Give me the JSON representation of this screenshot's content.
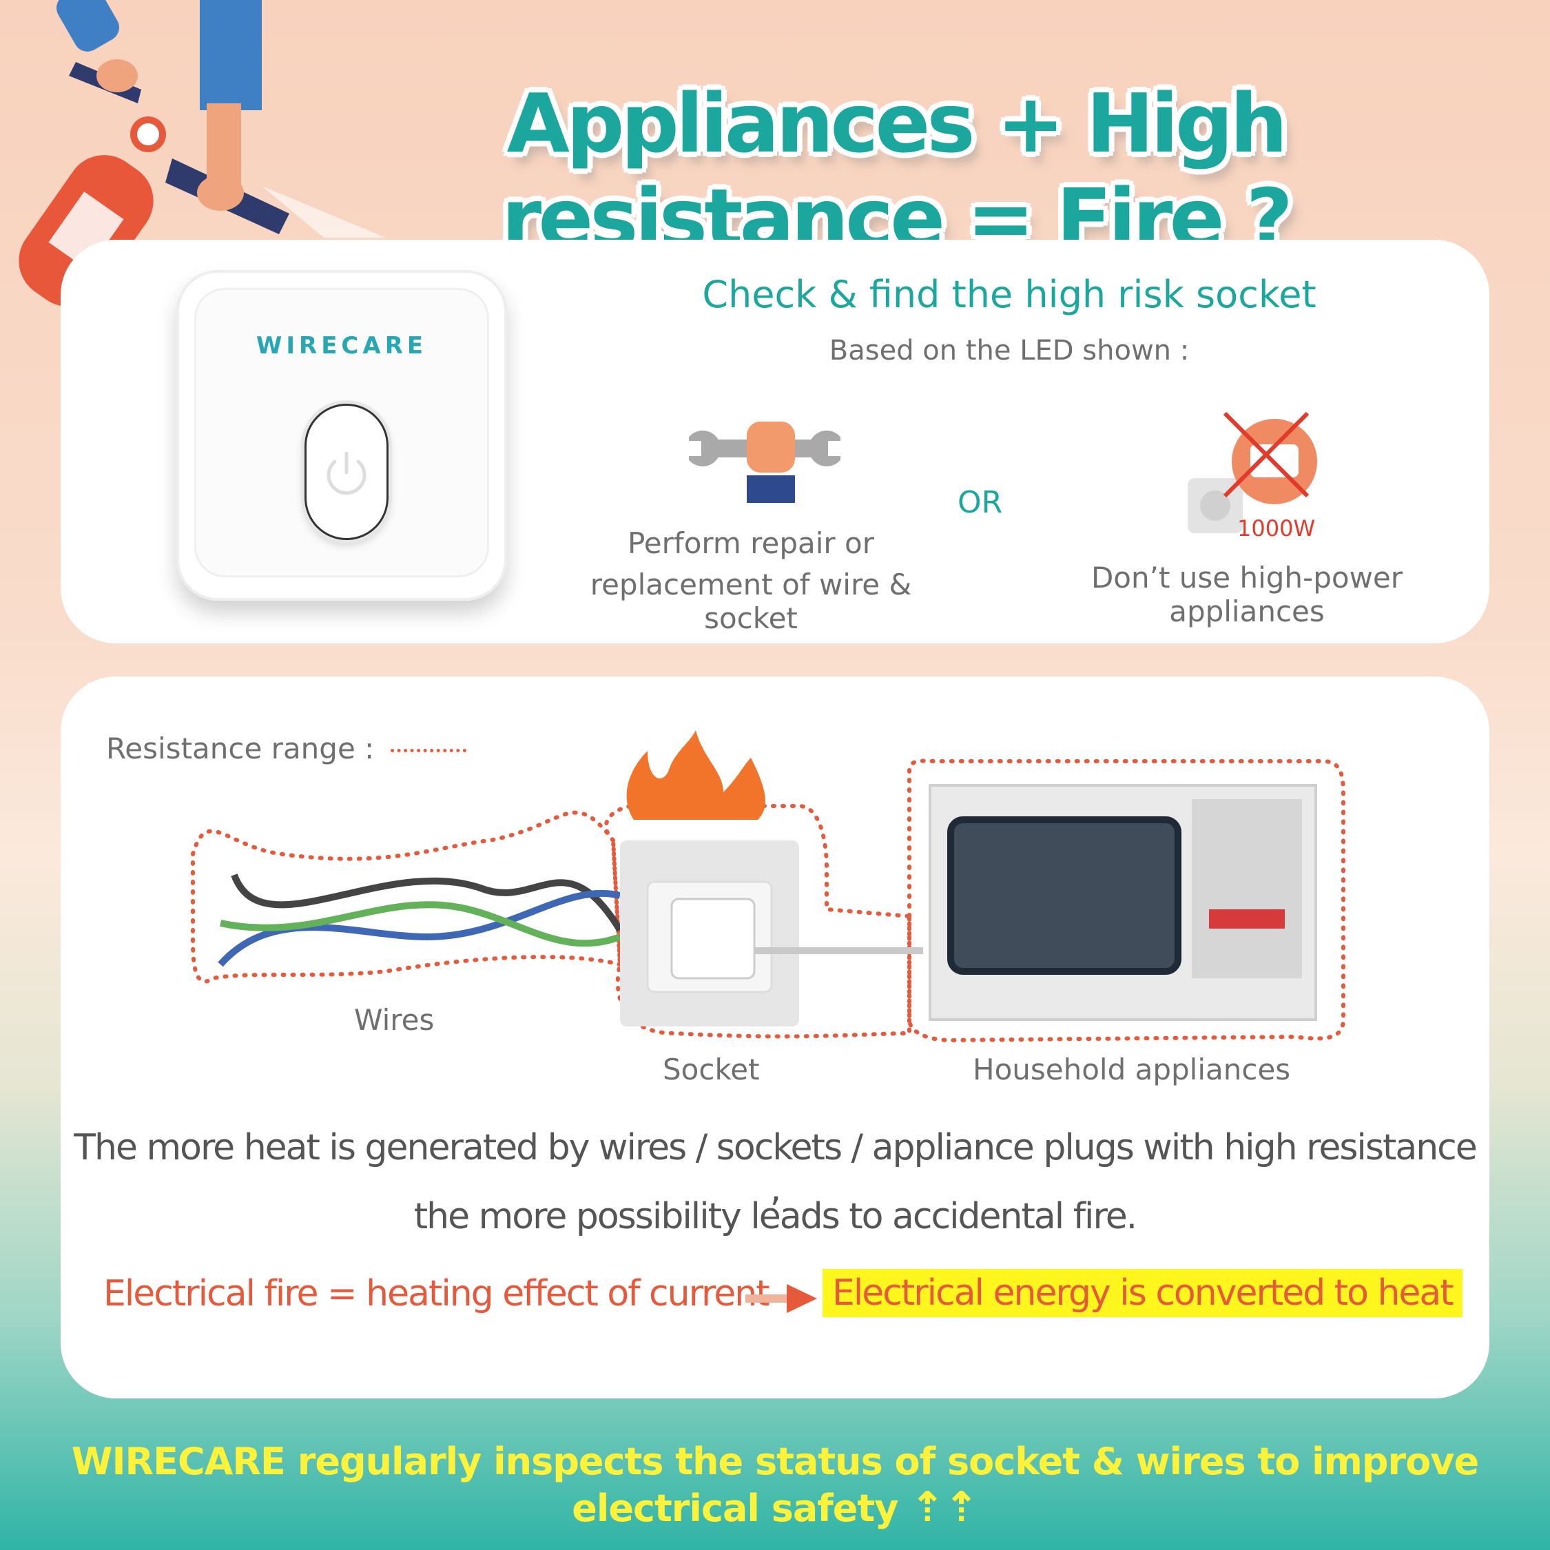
{
  "header": {
    "title": "Appliances + High resistance = Fire ?"
  },
  "device": {
    "brand": "WIRECARE"
  },
  "check": {
    "heading": "Check & find the high risk socket",
    "subheading": "Based on the LED shown :",
    "option1_line1": "Perform repair or",
    "option1_line2": "replacement of wire & socket",
    "or_label": "OR",
    "option2_label": "Don’t use  high-power appliances",
    "wattage": "1000W"
  },
  "diagram": {
    "legend": "Resistance range :",
    "wires_label": "Wires",
    "socket_label": "Socket",
    "appliance_label": "Household appliances"
  },
  "explanation": {
    "line1": "The more heat is generated by wires / sockets / appliance plugs with high resistance ,",
    "line2": "the more possibility leads to accidental fire.",
    "formula_left": "Electrical fire = heating effect of current",
    "formula_right": "Electrical energy is converted to heat"
  },
  "footer": {
    "text": "WIRECARE regularly inspects the status of socket & wires to improve electrical safety"
  },
  "colors": {
    "teal": "#1ba79e",
    "red": "#e65a3b",
    "yellow": "#fff23a",
    "grey": "#6f6f6f"
  }
}
